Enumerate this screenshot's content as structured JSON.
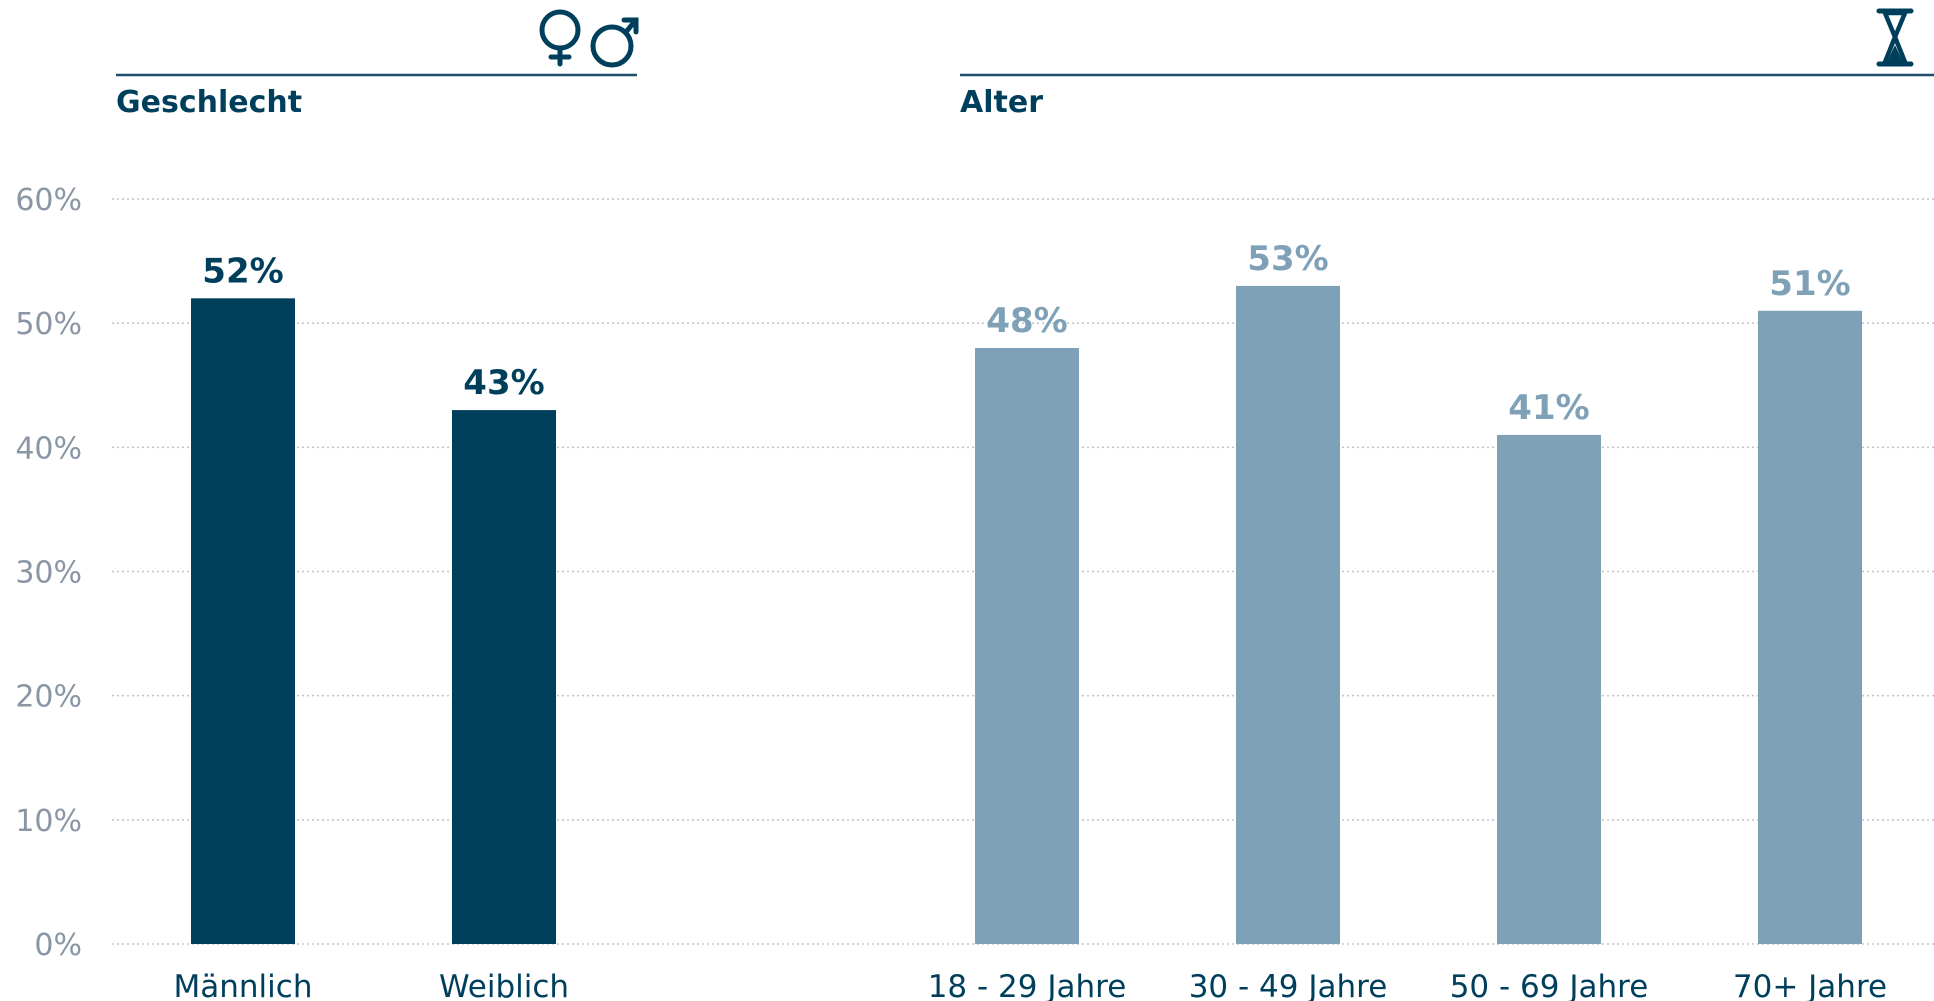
{
  "colors": {
    "dark": "#003f5c",
    "light": "#7fa1b8",
    "grid": "#bfc4c9",
    "tick": "#8a96a3"
  },
  "icons": {
    "gender": "female-male-symbols-icon",
    "age": "hourglass-icon"
  },
  "chart_data": [
    {
      "type": "bar",
      "title": "Geschlecht",
      "categories": [
        "Männlich",
        "Weiblich"
      ],
      "values": [
        52,
        43
      ],
      "value_labels": [
        "52%",
        "43%"
      ],
      "ylim": [
        0,
        60
      ],
      "yticks": [
        "0%",
        "10%",
        "20%",
        "30%",
        "40%",
        "50%",
        "60%"
      ],
      "grid": true,
      "color": "#003f5c"
    },
    {
      "type": "bar",
      "title": "Alter",
      "categories": [
        "18 - 29 Jahre",
        "30 - 49 Jahre",
        "50 - 69 Jahre",
        "70+ Jahre"
      ],
      "values": [
        48,
        53,
        41,
        51
      ],
      "value_labels": [
        "48%",
        "53%",
        "41%",
        "51%"
      ],
      "ylim": [
        0,
        60
      ],
      "grid": true,
      "color": "#7fa1b8"
    }
  ]
}
